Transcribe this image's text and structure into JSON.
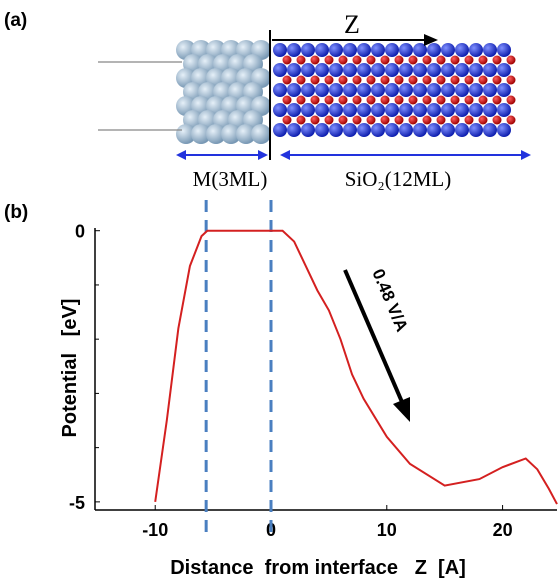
{
  "panel_a": {
    "label": "(a)",
    "axis_label": "Z",
    "regions": [
      "M(3ML)",
      "SiO₂(12ML)"
    ]
  },
  "chart_data": {
    "type": "line",
    "panel_label": "(b)",
    "x_label": "Distance  from interface   Z  [A]",
    "y_label": "Potential   [eV]",
    "annotation": "0.48 V/A",
    "xlim": [
      -15.2,
      24.7
    ],
    "xticks": [
      -10,
      0,
      10,
      20
    ],
    "ylim": [
      -5.15,
      0.05
    ],
    "yticks": [
      0,
      -5
    ],
    "yminorticks": [
      -1,
      -2,
      -3,
      -4
    ],
    "vlines": [
      -5.6,
      0
    ],
    "vline_color": "#4a7fc0",
    "x": [
      -10,
      -9,
      -8,
      -7,
      -6,
      -5.5,
      0,
      1,
      2,
      3,
      4,
      5,
      6,
      7,
      8,
      10,
      12,
      15,
      18,
      20,
      22,
      23,
      24,
      24.7
    ],
    "series": [
      {
        "color": "#d42020",
        "values": [
          -5,
          -3.5,
          -1.8,
          -0.65,
          -0.1,
          0,
          0,
          0,
          -0.2,
          -0.65,
          -1.1,
          -1.47,
          -2.0,
          -2.65,
          -3.1,
          -3.8,
          -4.3,
          -4.7,
          -4.58,
          -4.36,
          -4.2,
          -4.4,
          -4.76,
          -5.04
        ]
      }
    ]
  }
}
